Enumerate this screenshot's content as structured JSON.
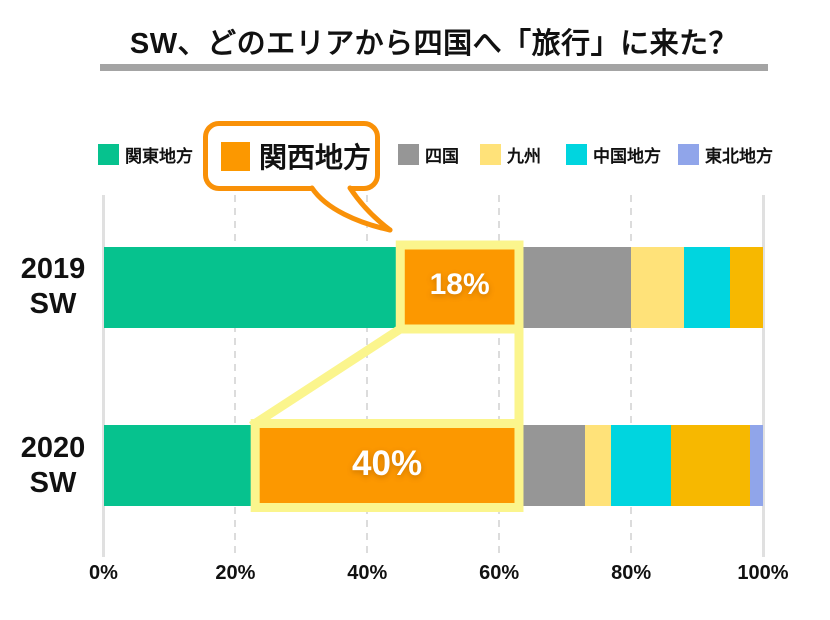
{
  "title": "SW、どのエリアから四国へ「旅行」に来た？",
  "legend": {
    "items": [
      {
        "key": "kanto",
        "label": "関東地方",
        "color": "#06c28e"
      },
      {
        "key": "kansai",
        "label": "関西地方",
        "color": "#fc9800",
        "highlighted": true
      },
      {
        "key": "shikoku",
        "label": "四国",
        "color": "#969696"
      },
      {
        "key": "kyushu",
        "label": "九州",
        "color": "#ffe279"
      },
      {
        "key": "chugoku",
        "label": "中国地方",
        "color": "#00d5df"
      },
      {
        "key": "tohoku",
        "label": "東北地方",
        "color": "#90a5ea"
      }
    ]
  },
  "highlight": {
    "series": "関西地方",
    "box_color": "#fbf58d",
    "bubble_border_color": "#f99108",
    "data_labels": [
      "18%",
      "40%"
    ]
  },
  "chart_data": {
    "type": "bar",
    "stacked": true,
    "orientation": "horizontal",
    "title": "SW、どのエリアから四国へ「旅行」に来た？",
    "categories": [
      "2019 SW",
      "2020 SW"
    ],
    "x_ticks": [
      "0%",
      "20%",
      "40%",
      "60%",
      "80%",
      "100%"
    ],
    "xlim": [
      0,
      100
    ],
    "grid": "vertical, dashed interior lines, solid at 0% and 100%",
    "legend_position": "top",
    "series": [
      {
        "key": "kanto",
        "name": "関東地方",
        "color": "#06c28e",
        "in_legend": true,
        "values": [
          45,
          23
        ]
      },
      {
        "key": "kansai",
        "name": "関西地方",
        "color": "#fc9800",
        "in_legend": true,
        "values": [
          18,
          40
        ],
        "data_labels": [
          "18%",
          "40%"
        ],
        "highlighted": true
      },
      {
        "key": "shikoku",
        "name": "四国",
        "color": "#969696",
        "in_legend": true,
        "values": [
          17,
          10
        ]
      },
      {
        "key": "kyushu",
        "name": "九州",
        "color": "#ffe279",
        "in_legend": true,
        "values": [
          8,
          4
        ]
      },
      {
        "key": "chugoku",
        "name": "中国地方",
        "color": "#00d5df",
        "in_legend": true,
        "values": [
          7,
          9
        ]
      },
      {
        "key": "unlabeled",
        "name": "",
        "color": "#f7b800",
        "in_legend": false,
        "values": [
          5,
          12
        ]
      },
      {
        "key": "tohoku",
        "name": "東北地方",
        "color": "#90a5ea",
        "in_legend": true,
        "values": [
          0,
          2
        ]
      }
    ]
  }
}
